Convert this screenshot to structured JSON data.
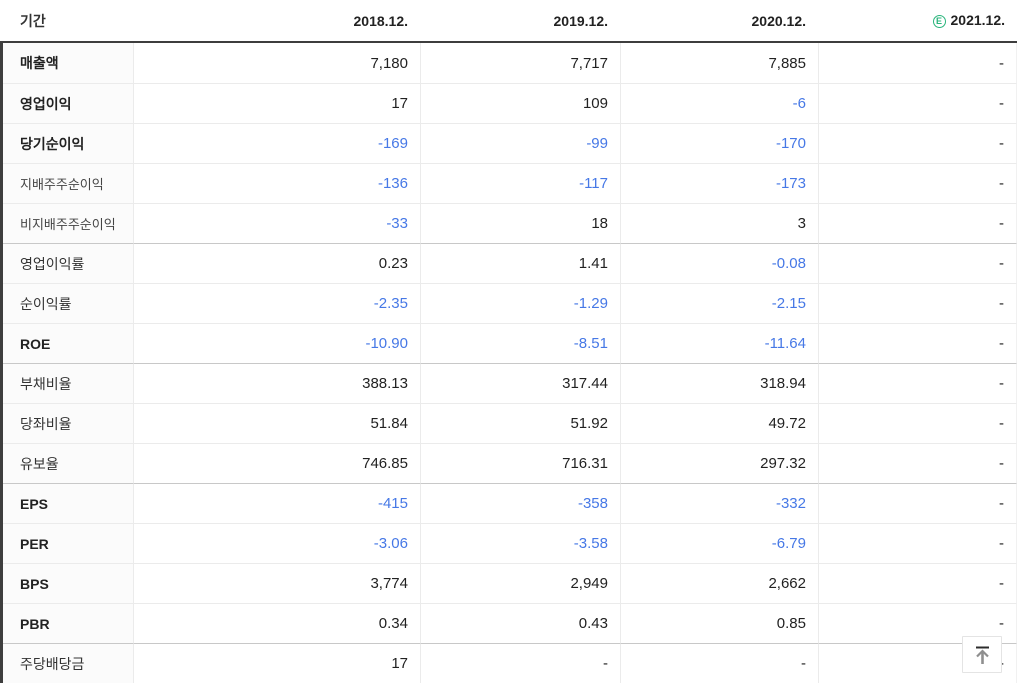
{
  "header": {
    "period_label": "기간",
    "estimate_badge": "E",
    "columns": [
      {
        "label": "2018.12.",
        "estimate": false
      },
      {
        "label": "2019.12.",
        "estimate": false
      },
      {
        "label": "2020.12.",
        "estimate": false
      },
      {
        "label": "2021.12.",
        "estimate": true
      }
    ]
  },
  "rows": [
    {
      "label": "매출액",
      "style": "bold",
      "group": false,
      "values": [
        "7,180",
        "7,717",
        "7,885",
        "-"
      ],
      "blue": [
        false,
        false,
        false,
        false
      ]
    },
    {
      "label": "영업이익",
      "style": "bold",
      "group": false,
      "values": [
        "17",
        "109",
        "-6",
        "-"
      ],
      "blue": [
        false,
        false,
        true,
        false
      ]
    },
    {
      "label": "당기순이익",
      "style": "bold",
      "group": false,
      "values": [
        "-169",
        "-99",
        "-170",
        "-"
      ],
      "blue": [
        true,
        true,
        true,
        false
      ]
    },
    {
      "label": "지배주주순이익",
      "style": "sub",
      "group": false,
      "values": [
        "-136",
        "-117",
        "-173",
        "-"
      ],
      "blue": [
        true,
        true,
        true,
        false
      ]
    },
    {
      "label": "비지배주주순이익",
      "style": "sub",
      "group": false,
      "values": [
        "-33",
        "18",
        "3",
        "-"
      ],
      "blue": [
        true,
        false,
        false,
        false
      ]
    },
    {
      "label": "영업이익률",
      "style": "normal",
      "group": true,
      "values": [
        "0.23",
        "1.41",
        "-0.08",
        "-"
      ],
      "blue": [
        false,
        false,
        true,
        false
      ]
    },
    {
      "label": "순이익률",
      "style": "normal",
      "group": false,
      "values": [
        "-2.35",
        "-1.29",
        "-2.15",
        "-"
      ],
      "blue": [
        true,
        true,
        true,
        false
      ]
    },
    {
      "label": "ROE",
      "style": "bold",
      "group": false,
      "values": [
        "-10.90",
        "-8.51",
        "-11.64",
        "-"
      ],
      "blue": [
        true,
        true,
        true,
        false
      ]
    },
    {
      "label": "부채비율",
      "style": "normal",
      "group": true,
      "values": [
        "388.13",
        "317.44",
        "318.94",
        "-"
      ],
      "blue": [
        false,
        false,
        false,
        false
      ]
    },
    {
      "label": "당좌비율",
      "style": "normal",
      "group": false,
      "values": [
        "51.84",
        "51.92",
        "49.72",
        "-"
      ],
      "blue": [
        false,
        false,
        false,
        false
      ]
    },
    {
      "label": "유보율",
      "style": "normal",
      "group": false,
      "values": [
        "746.85",
        "716.31",
        "297.32",
        "-"
      ],
      "blue": [
        false,
        false,
        false,
        false
      ]
    },
    {
      "label": "EPS",
      "style": "bold",
      "group": true,
      "values": [
        "-415",
        "-358",
        "-332",
        "-"
      ],
      "blue": [
        true,
        true,
        true,
        false
      ]
    },
    {
      "label": "PER",
      "style": "bold",
      "group": false,
      "values": [
        "-3.06",
        "-3.58",
        "-6.79",
        "-"
      ],
      "blue": [
        true,
        true,
        true,
        false
      ]
    },
    {
      "label": "BPS",
      "style": "bold",
      "group": false,
      "values": [
        "3,774",
        "2,949",
        "2,662",
        "-"
      ],
      "blue": [
        false,
        false,
        false,
        false
      ]
    },
    {
      "label": "PBR",
      "style": "bold",
      "group": false,
      "values": [
        "0.34",
        "0.43",
        "0.85",
        "-"
      ],
      "blue": [
        false,
        false,
        false,
        false
      ]
    },
    {
      "label": "주당배당금",
      "style": "normal",
      "group": true,
      "values": [
        "17",
        "-",
        "-",
        "-"
      ],
      "blue": [
        false,
        false,
        false,
        false
      ]
    }
  ],
  "colors": {
    "negative_value": "#4678e6",
    "estimate_badge": "#2ab57c",
    "header_border": "#3e3e3e"
  }
}
